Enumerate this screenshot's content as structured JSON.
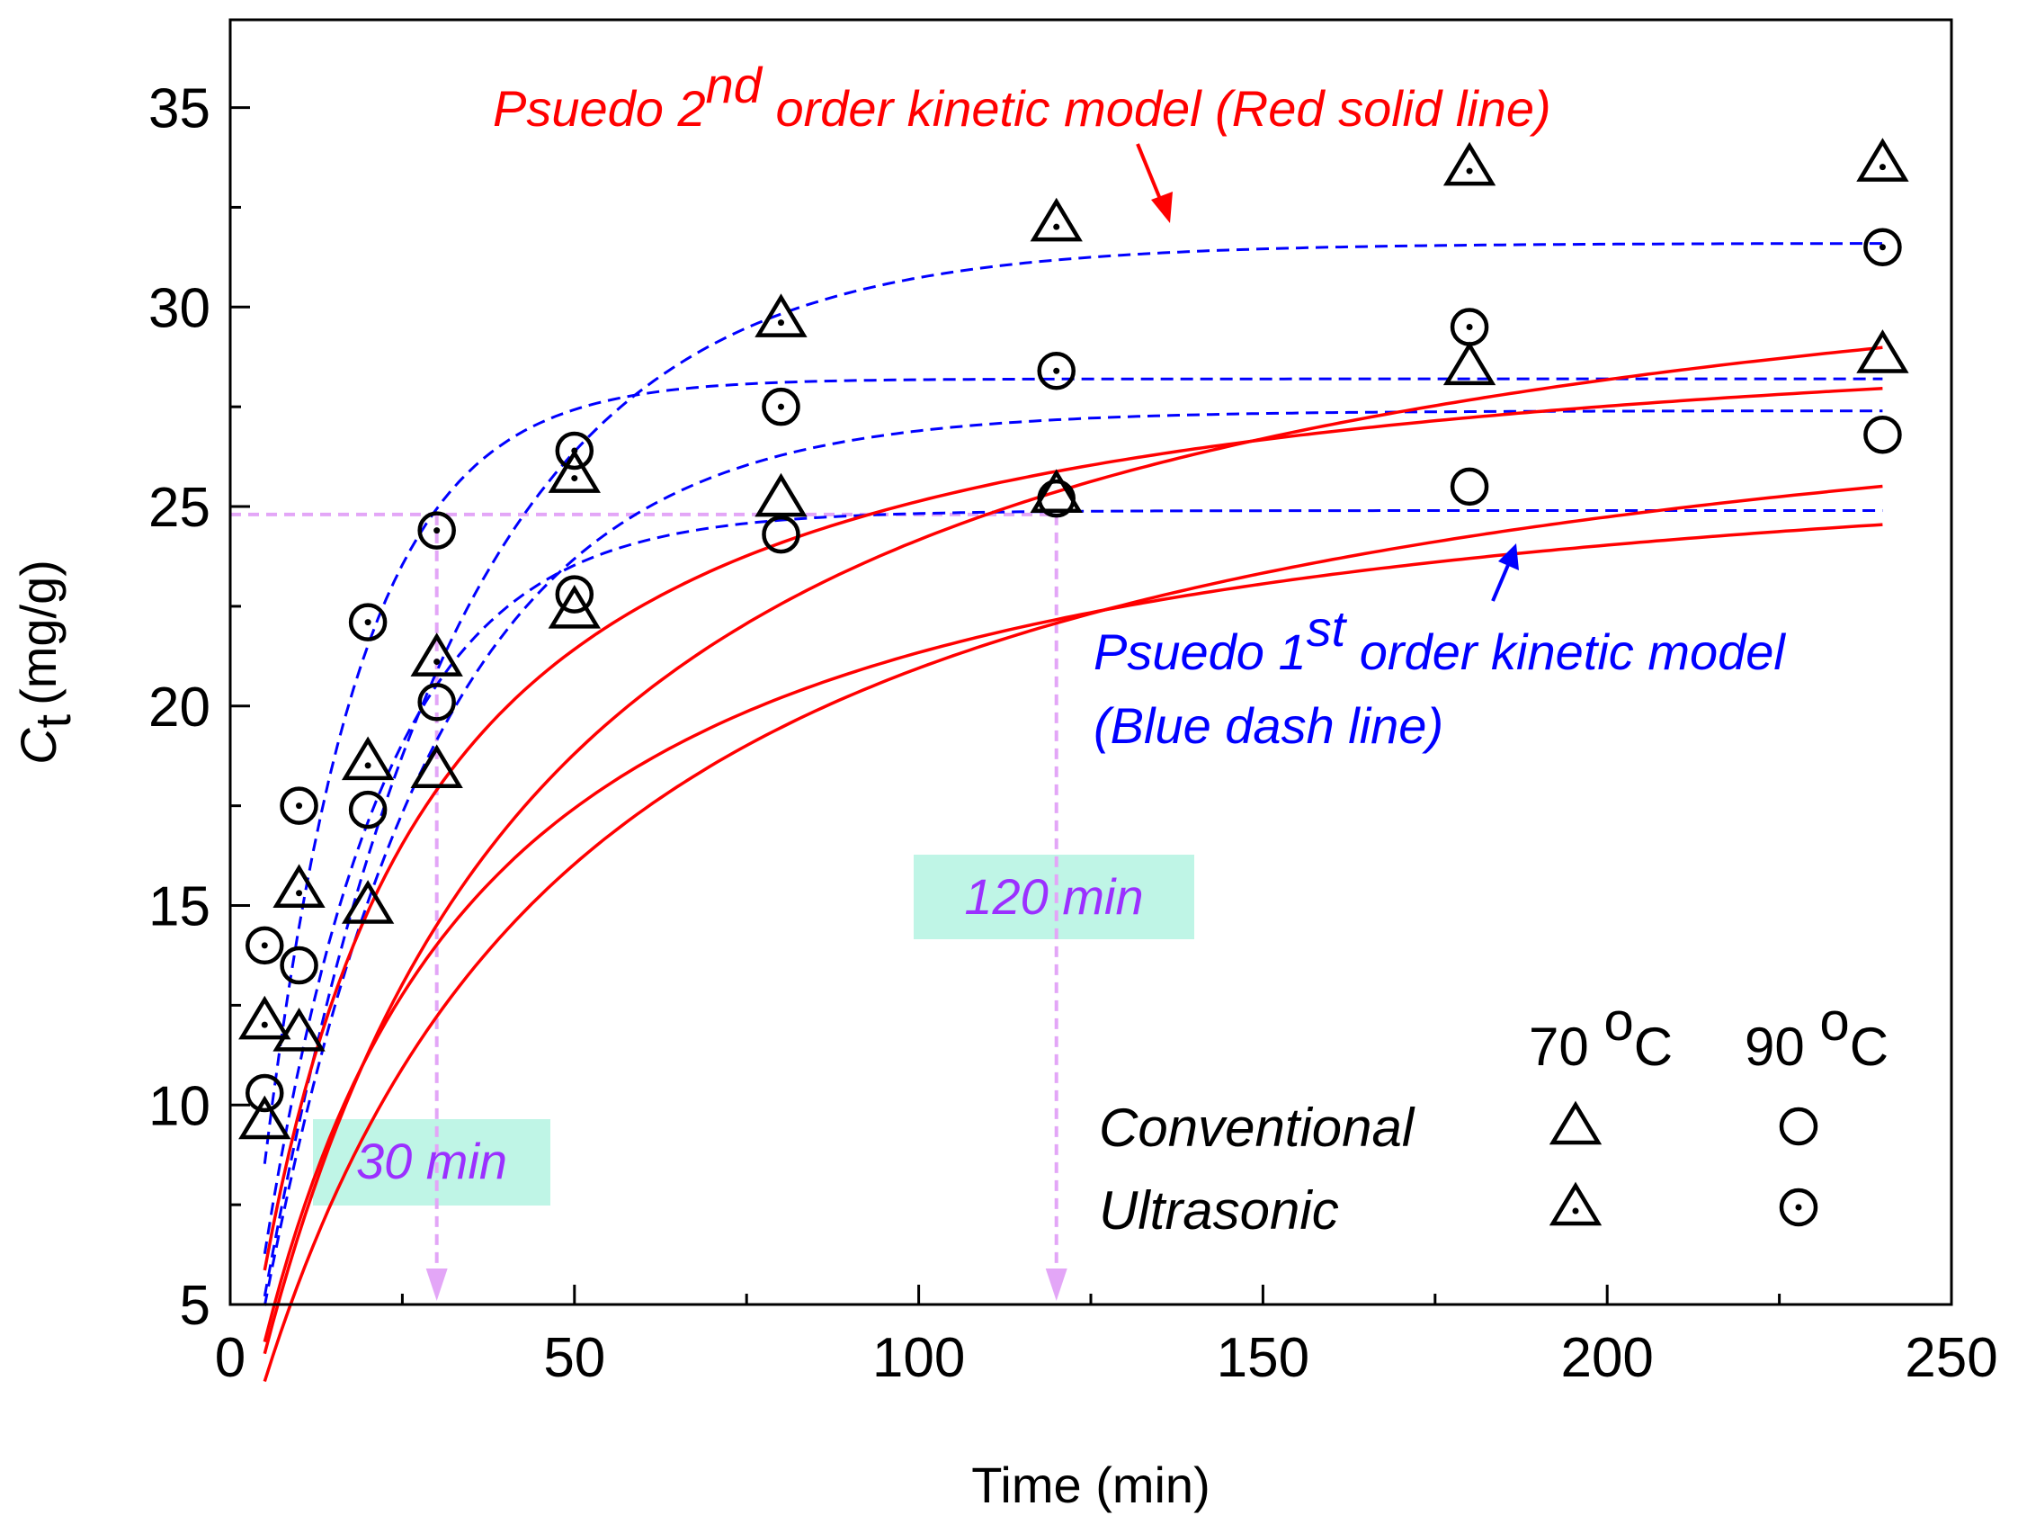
{
  "chart_data": {
    "type": "scatter",
    "title": "",
    "xlabel": "Time (min)",
    "ylabel_main": "C",
    "ylabel_sub": "t",
    "ylabel_unit": "(mg/g)",
    "xlim": [
      0,
      250
    ],
    "ylim": [
      5,
      37.2
    ],
    "x_ticks": [
      0,
      50,
      100,
      150,
      200,
      250
    ],
    "y_ticks": [
      5,
      10,
      15,
      20,
      25,
      30,
      35
    ],
    "x_tick_labels": [
      "0",
      "50",
      "100",
      "150",
      "200",
      "250"
    ],
    "y_tick_labels": [
      "5",
      "10",
      "15",
      "20",
      "25",
      "30",
      "35"
    ],
    "series": [
      {
        "name": "Conventional 70 °C",
        "marker": "triangle",
        "x": [
          5,
          10,
          20,
          30,
          50,
          80,
          120,
          180,
          240
        ],
        "y": [
          9.6,
          11.8,
          15.0,
          18.4,
          22.4,
          25.2,
          25.3,
          28.5,
          28.8
        ]
      },
      {
        "name": "Conventional 90 °C",
        "marker": "circle",
        "x": [
          5,
          10,
          20,
          30,
          50,
          80,
          120,
          180,
          240
        ],
        "y": [
          10.3,
          13.5,
          17.4,
          20.1,
          22.8,
          24.3,
          25.2,
          25.5,
          26.8
        ]
      },
      {
        "name": "Ultrasonic 70 °C",
        "marker": "triangle-dot",
        "x": [
          5,
          10,
          20,
          30,
          50,
          80,
          120,
          180,
          240
        ],
        "y": [
          12.1,
          15.4,
          18.6,
          21.2,
          25.8,
          29.7,
          32.1,
          33.5,
          33.6
        ]
      },
      {
        "name": "Ultrasonic 90 °C",
        "marker": "circle-dot",
        "x": [
          5,
          10,
          20,
          30,
          50,
          80,
          120,
          180,
          240
        ],
        "y": [
          14.0,
          17.5,
          22.1,
          24.4,
          26.4,
          27.5,
          28.4,
          29.5,
          31.5
        ]
      }
    ],
    "pseudo_second_order": [
      {
        "qe": 33.8,
        "k2": 0.000742
      },
      {
        "qe": 30.4,
        "k2": 0.00157
      },
      {
        "qe": 30.2,
        "k2": 0.00075
      },
      {
        "qe": 27.5,
        "k2": 0.00126
      }
    ],
    "pseudo_first_order": [
      {
        "qe": 31.6,
        "k1": 0.036
      },
      {
        "qe": 28.2,
        "k1": 0.072
      },
      {
        "qe": 27.4,
        "k1": 0.04
      },
      {
        "qe": 24.9,
        "k1": 0.058
      }
    ],
    "fit_x_range": [
      5,
      240
    ],
    "reference_lines": {
      "y": 24.8,
      "x_marks": [
        30,
        120
      ]
    },
    "annotations": {
      "red_title_pre": "Psuedo 2",
      "red_title_sup": "nd",
      "red_title_post": " order kinetic model (Red solid line)",
      "blue_title_pre": "Psuedo 1",
      "blue_title_sup": "st",
      "blue_title_post": " order kinetic model",
      "blue_subtitle": "(Blue dash line)",
      "box_30": "30 min",
      "box_120": "120 min"
    },
    "legend": {
      "col_70": "70 ",
      "col_90": "90 ",
      "deg_o": "o",
      "unit_c": "C",
      "row_conventional": "Conventional",
      "row_ultrasonic": "Ultrasonic"
    },
    "colors": {
      "red": "#ff0000",
      "blue": "#0000ff",
      "pink": "#e3a6f7",
      "purple": "#9b30ff",
      "box": "#bff5e6",
      "marker": "#000000"
    }
  }
}
